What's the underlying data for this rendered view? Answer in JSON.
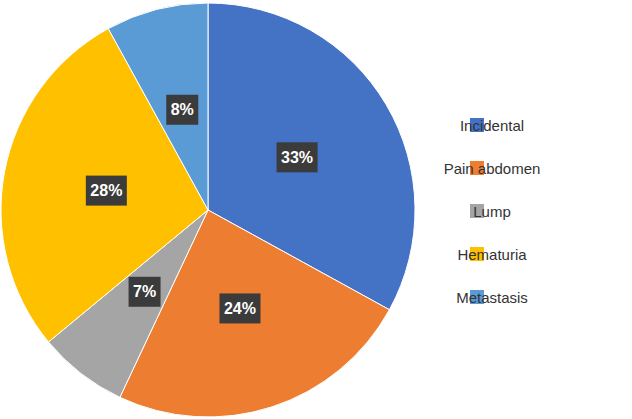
{
  "chart_data": {
    "type": "pie",
    "categories": [
      "Incidental",
      "Pain abdomen",
      "Lump",
      "Hematuria",
      "Metastasis"
    ],
    "values": [
      33,
      24,
      7,
      28,
      8
    ],
    "value_labels": [
      "33%",
      "24%",
      "7%",
      "28%",
      "8%"
    ],
    "colors": [
      "#4472c4",
      "#ed7d31",
      "#a5a5a5",
      "#ffc000",
      "#5b9bd5"
    ],
    "data_labels": true,
    "legend": "right"
  }
}
